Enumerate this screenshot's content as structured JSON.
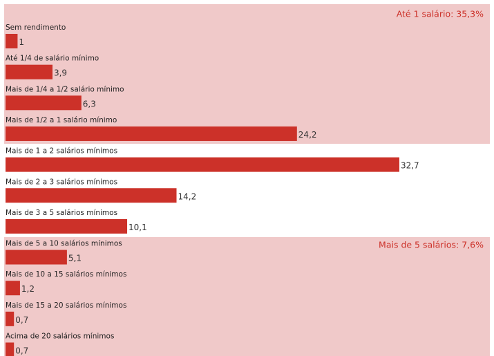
{
  "chart_data": {
    "type": "bar",
    "orientation": "horizontal",
    "categories": [
      "Sem rendimento",
      "Até 1/4 de salário mínimo",
      "Mais de 1/4 a 1/2 salário mínimo",
      "Mais de 1/2 a 1 salário mínimo",
      "Mais de 1 a 2 salários mínimos",
      "Mais de 2 a 3 salários mínimos",
      "Mais de 3 a 5 salários mínimos",
      "Mais de 5 a 10 salários mínimos",
      "Mais de 10 a 15 salários mínimos",
      "Mais de 15 a 20 salários mínimos",
      "Acima de 20 salários mínimos"
    ],
    "values": [
      1,
      3.9,
      6.3,
      24.2,
      32.7,
      14.2,
      10.1,
      5.1,
      1.2,
      0.7,
      0.7
    ],
    "value_labels": [
      "1",
      "3,9",
      "6,3",
      "24,2",
      "32,7",
      "14,2",
      "10,1",
      "5,1",
      "1,2",
      "0,7",
      "0,7"
    ],
    "color": "#cc3129",
    "annotations": [
      "Até 1 salário: 35,3%",
      "Mais de 5 salários: 7,6%"
    ]
  }
}
